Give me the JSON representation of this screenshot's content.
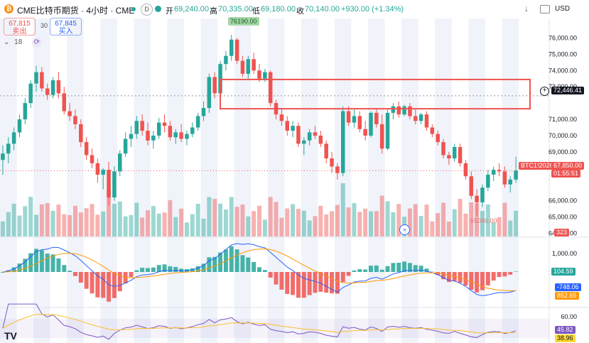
{
  "header": {
    "symbol_title": "CME比特币期货 · 4小时 · CME",
    "open_label": "开",
    "open_value": "69,240.00",
    "high_label": "高",
    "high_value": "70,335.00",
    "low_label": "低",
    "low_value": "69,180.00",
    "close_label": "收",
    "close_value": "70,140.00",
    "change": "+930.00 (+1.34%)",
    "currency": "USD"
  },
  "trade": {
    "sell_price": "67,815",
    "sell_label": "卖出",
    "spread": "30",
    "buy_price": "67,845",
    "buy_label": "买入"
  },
  "controls": {
    "interval_count": "18"
  },
  "labels": {
    "high_marker": "76190.00",
    "low_marker": "65090.00",
    "crosshair_price": "72,446.41",
    "ticker_tag": "BTC1!2026",
    "last_price": "67,850.00",
    "countdown": "01:55:51",
    "volume_tag": "323",
    "macd_hist": "104.59",
    "macd_line": "-748.06",
    "macd_signal": "852.65",
    "rsi_value": "45.82",
    "rsi_ma": "38.96"
  },
  "price_axis_ticks": [
    "76,000.00",
    "75,000.00",
    "74,000.00",
    "73,000.00",
    "71,000.00",
    "70,000.00",
    "69,000.00",
    "66,000.00",
    "65,000.00",
    "64,000.00"
  ],
  "macd_axis_ticks": [
    "1,000.00"
  ],
  "rsi_axis_ticks": [
    "60.00"
  ],
  "colors": {
    "up": "#26a69a",
    "down": "#ef5350",
    "box": "#ef5350",
    "macd": "#2962ff",
    "signal": "#ff9800",
    "rsi": "#7e57c2"
  },
  "chart_data": {
    "type": "candlestick",
    "timeframe": "4h",
    "ylim": [
      63800,
      77200
    ],
    "candles": [
      [
        68500,
        69400,
        67600,
        68900
      ],
      [
        68900,
        69900,
        68300,
        69500
      ],
      [
        69500,
        70500,
        69100,
        70200
      ],
      [
        70200,
        71300,
        69900,
        71000
      ],
      [
        71000,
        72300,
        70700,
        72000
      ],
      [
        72000,
        73400,
        71700,
        73200
      ],
      [
        73200,
        74300,
        72700,
        73900
      ],
      [
        73900,
        74200,
        72700,
        72900
      ],
      [
        72900,
        73200,
        72200,
        72500
      ],
      [
        72500,
        73600,
        72300,
        73400
      ],
      [
        73400,
        73900,
        72300,
        72600
      ],
      [
        72600,
        73000,
        71300,
        71500
      ],
      [
        71500,
        72000,
        70900,
        71200
      ],
      [
        71200,
        71600,
        70400,
        70700
      ],
      [
        70700,
        71000,
        69300,
        69600
      ],
      [
        69600,
        69900,
        68500,
        68800
      ],
      [
        68800,
        69200,
        68000,
        68300
      ],
      [
        68300,
        68600,
        67100,
        67600
      ],
      [
        67600,
        68000,
        66700,
        67900
      ],
      [
        67900,
        68400,
        65700,
        66200
      ],
      [
        66200,
        68100,
        66000,
        67800
      ],
      [
        67800,
        69100,
        67500,
        68900
      ],
      [
        68900,
        70200,
        68700,
        69800
      ],
      [
        69800,
        70600,
        69300,
        70100
      ],
      [
        70100,
        71200,
        69800,
        70900
      ],
      [
        70900,
        71300,
        70000,
        70300
      ],
      [
        70300,
        70800,
        69400,
        69700
      ],
      [
        69700,
        70300,
        69200,
        70000
      ],
      [
        70000,
        71100,
        69800,
        70800
      ],
      [
        70800,
        71300,
        70200,
        70600
      ],
      [
        70600,
        70900,
        69700,
        69900
      ],
      [
        69900,
        70400,
        69500,
        70200
      ],
      [
        70200,
        70700,
        69600,
        69800
      ],
      [
        69800,
        70300,
        69400,
        70100
      ],
      [
        70100,
        70800,
        69900,
        70500
      ],
      [
        70500,
        71400,
        70300,
        71200
      ],
      [
        71200,
        72100,
        70900,
        71700
      ],
      [
        71700,
        73800,
        71400,
        73600
      ],
      [
        73600,
        73900,
        72300,
        72600
      ],
      [
        72600,
        74600,
        72400,
        74400
      ],
      [
        74400,
        75200,
        74000,
        74900
      ],
      [
        74900,
        76190,
        74600,
        75900
      ],
      [
        75900,
        76000,
        74400,
        74600
      ],
      [
        74600,
        74900,
        73600,
        73800
      ],
      [
        73800,
        74900,
        73500,
        74700
      ],
      [
        74700,
        75100,
        73800,
        74000
      ],
      [
        74000,
        74400,
        73300,
        73500
      ],
      [
        73500,
        74100,
        73300,
        73900
      ],
      [
        73900,
        74000,
        71800,
        72000
      ],
      [
        72000,
        72200,
        71000,
        71300
      ],
      [
        71300,
        71700,
        70600,
        70900
      ],
      [
        70900,
        71200,
        70000,
        70300
      ],
      [
        70300,
        70900,
        69900,
        70600
      ],
      [
        70600,
        70800,
        69300,
        69500
      ],
      [
        69500,
        69900,
        68800,
        69700
      ],
      [
        69700,
        70400,
        69400,
        70200
      ],
      [
        70200,
        70600,
        69800,
        70000
      ],
      [
        70000,
        70300,
        69300,
        69500
      ],
      [
        69500,
        69700,
        68300,
        68600
      ],
      [
        68600,
        69000,
        67700,
        68100
      ],
      [
        68100,
        68300,
        67300,
        67700
      ],
      [
        67700,
        71800,
        67500,
        71500
      ],
      [
        71500,
        71800,
        70600,
        70800
      ],
      [
        70800,
        71600,
        70500,
        71200
      ],
      [
        71200,
        71500,
        70200,
        70400
      ],
      [
        70400,
        70900,
        69700,
        70000
      ],
      [
        70000,
        71500,
        69900,
        71400
      ],
      [
        71400,
        71700,
        70500,
        70700
      ],
      [
        70700,
        71300,
        68900,
        69200
      ],
      [
        69200,
        71600,
        69100,
        71400
      ],
      [
        71400,
        72000,
        71000,
        71800
      ],
      [
        71800,
        72100,
        71100,
        71300
      ],
      [
        71300,
        71900,
        71200,
        71800
      ],
      [
        71800,
        72000,
        71000,
        71200
      ],
      [
        71200,
        71600,
        70700,
        70900
      ],
      [
        70900,
        71400,
        70700,
        71300
      ],
      [
        71300,
        71500,
        70300,
        70500
      ],
      [
        70500,
        70700,
        69900,
        70100
      ],
      [
        70100,
        70300,
        69400,
        69600
      ],
      [
        69600,
        69800,
        68600,
        68800
      ],
      [
        68800,
        69000,
        68200,
        68600
      ],
      [
        68600,
        69500,
        68400,
        69300
      ],
      [
        69300,
        69500,
        68100,
        68300
      ],
      [
        68300,
        68500,
        67300,
        67500
      ],
      [
        67500,
        67800,
        66100,
        66300
      ],
      [
        66300,
        66700,
        65090,
        65900
      ],
      [
        65900,
        67000,
        65600,
        66800
      ],
      [
        66800,
        67900,
        66600,
        67600
      ],
      [
        67600,
        68100,
        67200,
        67900
      ],
      [
        67900,
        68300,
        67500,
        67800
      ],
      [
        67800,
        68100,
        66800,
        67000
      ],
      [
        67000,
        67500,
        66500,
        67300
      ],
      [
        67300,
        68700,
        67100,
        67850
      ]
    ],
    "annotations": [
      {
        "text": "76190.00",
        "kind": "high"
      },
      {
        "text": "65090.00",
        "kind": "low"
      }
    ],
    "range_box": {
      "top": 73450,
      "bottom": 71650
    }
  }
}
